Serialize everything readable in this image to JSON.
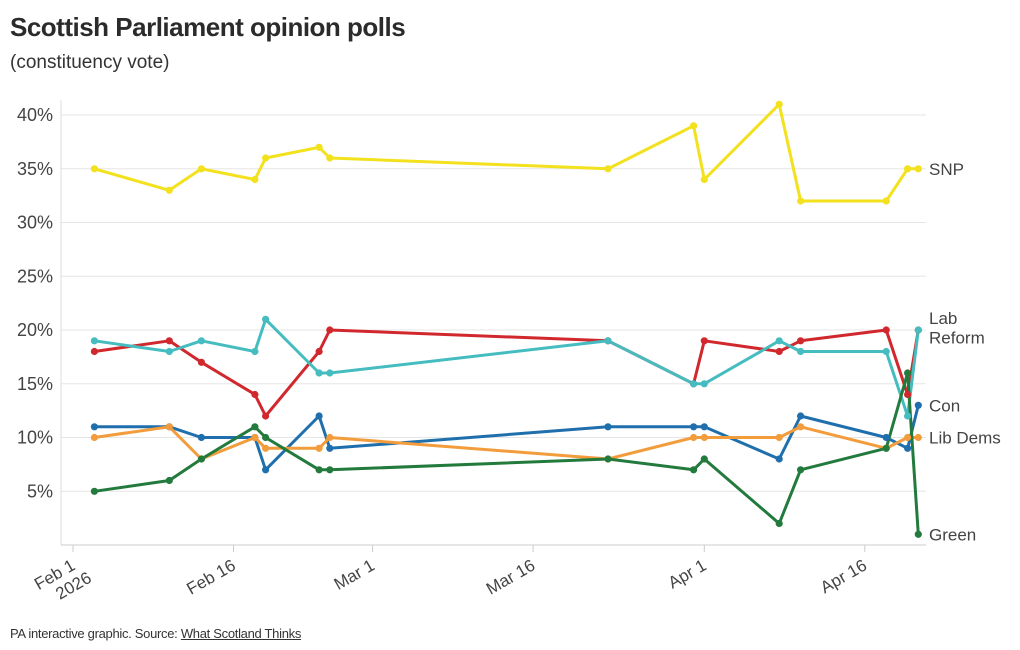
{
  "title": "Scottish Parliament opinion polls",
  "subtitle": "(constituency vote)",
  "footer": {
    "prefix": "PA interactive graphic. Source: ",
    "source_link": "What Scotland Thinks"
  },
  "chart_data": {
    "type": "line",
    "title": "Scottish Parliament opinion polls",
    "subtitle": "(constituency vote)",
    "xlabel": "",
    "ylabel": "",
    "ylim": [
      0,
      41
    ],
    "grid": true,
    "legend": "end-of-line labels (right)",
    "y_ticks": [
      {
        "value": 5,
        "label": "5%"
      },
      {
        "value": 10,
        "label": "10%"
      },
      {
        "value": 15,
        "label": "15%"
      },
      {
        "value": 20,
        "label": "20%"
      },
      {
        "value": 25,
        "label": "25%"
      },
      {
        "value": 30,
        "label": "30%"
      },
      {
        "value": 35,
        "label": "35%"
      },
      {
        "value": 40,
        "label": "40%"
      }
    ],
    "x_ticks": [
      {
        "date": "2026-02-01",
        "label": [
          "Feb 1",
          "2026"
        ]
      },
      {
        "date": "2026-02-16",
        "label": [
          "Feb 16"
        ]
      },
      {
        "date": "2026-03-01",
        "label": [
          "Mar 1"
        ]
      },
      {
        "date": "2026-03-16",
        "label": [
          "Mar 16"
        ]
      },
      {
        "date": "2026-04-01",
        "label": [
          "Apr 1"
        ]
      },
      {
        "date": "2026-04-16",
        "label": [
          "Apr 16"
        ]
      }
    ],
    "x_range": [
      "2026-01-31",
      "2026-04-22"
    ],
    "x": [
      "2026-02-03",
      "2026-02-10",
      "2026-02-13",
      "2026-02-18",
      "2026-02-19",
      "2026-02-24",
      "2026-02-25",
      "2026-03-23",
      "2026-03-31",
      "2026-04-01",
      "2026-04-08",
      "2026-04-10",
      "2026-04-18",
      "2026-04-20",
      "2026-04-21"
    ],
    "series": [
      {
        "name": "SNP",
        "label": "SNP",
        "color": "#f2e11c",
        "values": [
          35,
          33,
          35,
          34,
          36,
          37,
          36,
          35,
          39,
          34,
          41,
          32,
          32,
          35,
          35
        ]
      },
      {
        "name": "Lab",
        "label": "Lab",
        "color": "#d1282e",
        "values": [
          18,
          19,
          17,
          14,
          12,
          18,
          20,
          19,
          15,
          19,
          18,
          19,
          20,
          14,
          20
        ]
      },
      {
        "name": "Reform",
        "label": "Reform",
        "color": "#45bcbf",
        "values": [
          19,
          18,
          19,
          18,
          21,
          16,
          16,
          19,
          15,
          15,
          19,
          18,
          18,
          12,
          20
        ]
      },
      {
        "name": "Con",
        "label": "Con",
        "color": "#1f6fad",
        "values": [
          11,
          11,
          10,
          10,
          7,
          12,
          9,
          11,
          11,
          11,
          8,
          12,
          10,
          9,
          13
        ]
      },
      {
        "name": "Lib Dems",
        "label": "Lib Dems",
        "color": "#f29c3c",
        "values": [
          10,
          11,
          8,
          10,
          9,
          9,
          10,
          8,
          10,
          10,
          10,
          11,
          9,
          10,
          10
        ]
      },
      {
        "name": "Green",
        "label": "Green",
        "color": "#237a3d",
        "values": [
          5,
          6,
          8,
          11,
          10,
          7,
          7,
          8,
          7,
          8,
          2,
          7,
          9,
          16,
          1
        ]
      }
    ],
    "end_labels": [
      {
        "series": "SNP",
        "text": "SNP",
        "value": 35
      },
      {
        "series": "Lab",
        "text": "Lab",
        "value": 21.1
      },
      {
        "series": "Reform",
        "text": "Reform",
        "value": 19.3
      },
      {
        "series": "Con",
        "text": "Con",
        "value": 13
      },
      {
        "series": "Lib Dems",
        "text": "Lib Dems",
        "value": 10
      },
      {
        "series": "Green",
        "text": "Green",
        "value": 1
      }
    ]
  }
}
